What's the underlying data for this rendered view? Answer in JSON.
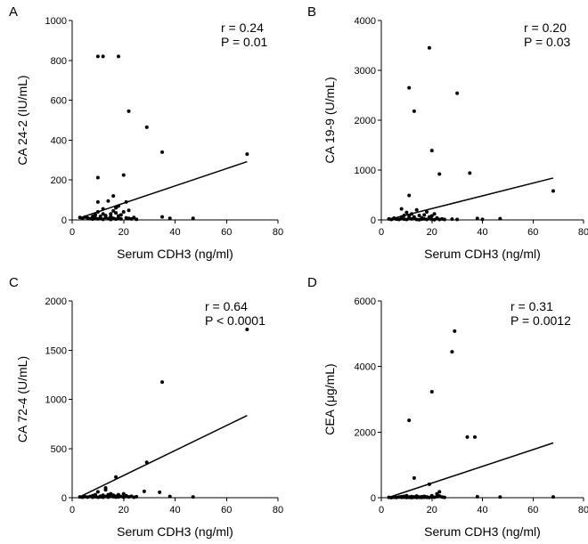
{
  "chart_data": [
    {
      "panel": "A",
      "type": "scatter",
      "xlabel": "Serum CDH3 (ng/ml)",
      "ylabel": "CA 24-2 (IU/mL)",
      "xlim": [
        0,
        80
      ],
      "ylim": [
        0,
        1000
      ],
      "xticks": [
        0,
        20,
        40,
        60,
        80
      ],
      "yticks": [
        0,
        200,
        400,
        600,
        800,
        1000
      ],
      "stats": [
        "r = 0.24",
        "P = 0.01"
      ],
      "regression": {
        "x": [
          3,
          68
        ],
        "y": [
          10,
          292
        ]
      },
      "points": [
        [
          3,
          12
        ],
        [
          4,
          8
        ],
        [
          5,
          14
        ],
        [
          6,
          10
        ],
        [
          7,
          6
        ],
        [
          8,
          18
        ],
        [
          8,
          4
        ],
        [
          9,
          25
        ],
        [
          9,
          10
        ],
        [
          10,
          5
        ],
        [
          10,
          40
        ],
        [
          11,
          8
        ],
        [
          11,
          18
        ],
        [
          12,
          3
        ],
        [
          12,
          30
        ],
        [
          12,
          55
        ],
        [
          13,
          12
        ],
        [
          13,
          22
        ],
        [
          14,
          6
        ],
        [
          14,
          95
        ],
        [
          15,
          2
        ],
        [
          15,
          30
        ],
        [
          15,
          18
        ],
        [
          16,
          45
        ],
        [
          16,
          8
        ],
        [
          16,
          120
        ],
        [
          17,
          4
        ],
        [
          17,
          35
        ],
        [
          17,
          60
        ],
        [
          18,
          10
        ],
        [
          18,
          70
        ],
        [
          18,
          20
        ],
        [
          19,
          25
        ],
        [
          19,
          5
        ],
        [
          20,
          40
        ],
        [
          20,
          225
        ],
        [
          21,
          10
        ],
        [
          21,
          90
        ],
        [
          22,
          8
        ],
        [
          22,
          48
        ],
        [
          23,
          5
        ],
        [
          24,
          12
        ],
        [
          25,
          3
        ],
        [
          10,
          212
        ],
        [
          10,
          90
        ],
        [
          10,
          820
        ],
        [
          12,
          820
        ],
        [
          18,
          820
        ],
        [
          22,
          545
        ],
        [
          29,
          465
        ],
        [
          35,
          340
        ],
        [
          35,
          15
        ],
        [
          38,
          8
        ],
        [
          47,
          8
        ],
        [
          68,
          330
        ]
      ]
    },
    {
      "panel": "B",
      "type": "scatter",
      "xlabel": "Serum CDH3 (ng/ml)",
      "ylabel": "CA 19-9 (U/mL)",
      "xlim": [
        0,
        80
      ],
      "ylim": [
        0,
        4000
      ],
      "xticks": [
        0,
        20,
        40,
        60,
        80
      ],
      "yticks": [
        0,
        1000,
        2000,
        3000,
        4000
      ],
      "stats": [
        "r = 0.20",
        "P = 0.03"
      ],
      "regression": {
        "x": [
          3,
          68
        ],
        "y": [
          10,
          840
        ]
      },
      "points": [
        [
          3,
          20
        ],
        [
          4,
          10
        ],
        [
          5,
          35
        ],
        [
          6,
          15
        ],
        [
          7,
          8
        ],
        [
          8,
          60
        ],
        [
          8,
          25
        ],
        [
          9,
          90
        ],
        [
          9,
          15
        ],
        [
          10,
          10
        ],
        [
          10,
          150
        ],
        [
          11,
          40
        ],
        [
          11,
          80
        ],
        [
          12,
          20
        ],
        [
          12,
          120
        ],
        [
          13,
          30
        ],
        [
          13,
          60
        ],
        [
          14,
          10
        ],
        [
          14,
          200
        ],
        [
          15,
          5
        ],
        [
          15,
          90
        ],
        [
          16,
          40
        ],
        [
          16,
          15
        ],
        [
          17,
          100
        ],
        [
          17,
          20
        ],
        [
          18,
          160
        ],
        [
          18,
          10
        ],
        [
          19,
          60
        ],
        [
          19,
          30
        ],
        [
          20,
          10
        ],
        [
          20,
          80
        ],
        [
          21,
          120
        ],
        [
          21,
          5
        ],
        [
          22,
          40
        ],
        [
          23,
          10
        ],
        [
          24,
          20
        ],
        [
          25,
          8
        ],
        [
          28,
          15
        ],
        [
          30,
          10
        ],
        [
          40,
          12
        ],
        [
          8,
          220
        ],
        [
          11,
          490
        ],
        [
          11,
          2650
        ],
        [
          13,
          2180
        ],
        [
          19,
          3450
        ],
        [
          20,
          1390
        ],
        [
          23,
          920
        ],
        [
          30,
          2540
        ],
        [
          35,
          940
        ],
        [
          38,
          30
        ],
        [
          47,
          25
        ],
        [
          68,
          580
        ]
      ]
    },
    {
      "panel": "C",
      "type": "scatter",
      "xlabel": "Serum CDH3 (ng/ml)",
      "ylabel": "CA 72-4 (U/mL)",
      "xlim": [
        0,
        80
      ],
      "ylim": [
        0,
        2000
      ],
      "xticks": [
        0,
        20,
        40,
        60,
        80
      ],
      "yticks": [
        0,
        500,
        1000,
        1500,
        2000
      ],
      "stats": [
        "r = 0.64",
        "P < 0.0001"
      ],
      "regression": {
        "x": [
          3,
          68
        ],
        "y": [
          10,
          835
        ]
      },
      "points": [
        [
          3,
          8
        ],
        [
          4,
          5
        ],
        [
          5,
          10
        ],
        [
          6,
          6
        ],
        [
          7,
          12
        ],
        [
          8,
          4
        ],
        [
          8,
          20
        ],
        [
          9,
          10
        ],
        [
          9,
          30
        ],
        [
          10,
          5
        ],
        [
          10,
          60
        ],
        [
          11,
          15
        ],
        [
          11,
          8
        ],
        [
          12,
          25
        ],
        [
          12,
          5
        ],
        [
          13,
          80
        ],
        [
          13,
          12
        ],
        [
          14,
          30
        ],
        [
          14,
          6
        ],
        [
          15,
          18
        ],
        [
          15,
          40
        ],
        [
          16,
          10
        ],
        [
          16,
          25
        ],
        [
          17,
          6
        ],
        [
          17,
          15
        ],
        [
          18,
          30
        ],
        [
          18,
          8
        ],
        [
          19,
          12
        ],
        [
          20,
          40
        ],
        [
          20,
          5
        ],
        [
          21,
          20
        ],
        [
          22,
          8
        ],
        [
          23,
          15
        ],
        [
          24,
          5
        ],
        [
          25,
          10
        ],
        [
          13,
          100
        ],
        [
          17,
          210
        ],
        [
          28,
          65
        ],
        [
          29,
          360
        ],
        [
          34,
          55
        ],
        [
          35,
          1175
        ],
        [
          38,
          12
        ],
        [
          47,
          8
        ],
        [
          68,
          1710
        ]
      ]
    },
    {
      "panel": "D",
      "type": "scatter",
      "xlabel": "Serum CDH3 (ng/ml)",
      "ylabel": "CEA (μg/mL)",
      "xlim": [
        0,
        80
      ],
      "ylim": [
        0,
        6000
      ],
      "xticks": [
        0,
        20,
        40,
        60,
        80
      ],
      "yticks": [
        0,
        2000,
        4000,
        6000
      ],
      "stats": [
        "r = 0.31",
        "P = 0.0012"
      ],
      "regression": {
        "x": [
          3,
          68
        ],
        "y": [
          10,
          1670
        ]
      },
      "points": [
        [
          3,
          10
        ],
        [
          4,
          5
        ],
        [
          5,
          15
        ],
        [
          6,
          8
        ],
        [
          7,
          20
        ],
        [
          8,
          10
        ],
        [
          8,
          30
        ],
        [
          9,
          15
        ],
        [
          9,
          40
        ],
        [
          10,
          8
        ],
        [
          10,
          60
        ],
        [
          11,
          20
        ],
        [
          11,
          10
        ],
        [
          12,
          35
        ],
        [
          12,
          5
        ],
        [
          13,
          25
        ],
        [
          13,
          12
        ],
        [
          14,
          50
        ],
        [
          14,
          8
        ],
        [
          15,
          20
        ],
        [
          15,
          10
        ],
        [
          16,
          30
        ],
        [
          16,
          6
        ],
        [
          17,
          15
        ],
        [
          17,
          40
        ],
        [
          18,
          10
        ],
        [
          18,
          25
        ],
        [
          19,
          8
        ],
        [
          20,
          60
        ],
        [
          20,
          20
        ],
        [
          21,
          12
        ],
        [
          22,
          30
        ],
        [
          22,
          120
        ],
        [
          23,
          50
        ],
        [
          23,
          180
        ],
        [
          24,
          20
        ],
        [
          25,
          10
        ],
        [
          11,
          2360
        ],
        [
          13,
          600
        ],
        [
          19,
          410
        ],
        [
          20,
          3230
        ],
        [
          28,
          4450
        ],
        [
          29,
          5080
        ],
        [
          34,
          1850
        ],
        [
          37,
          1850
        ],
        [
          38,
          30
        ],
        [
          47,
          20
        ],
        [
          68,
          25
        ]
      ]
    }
  ]
}
